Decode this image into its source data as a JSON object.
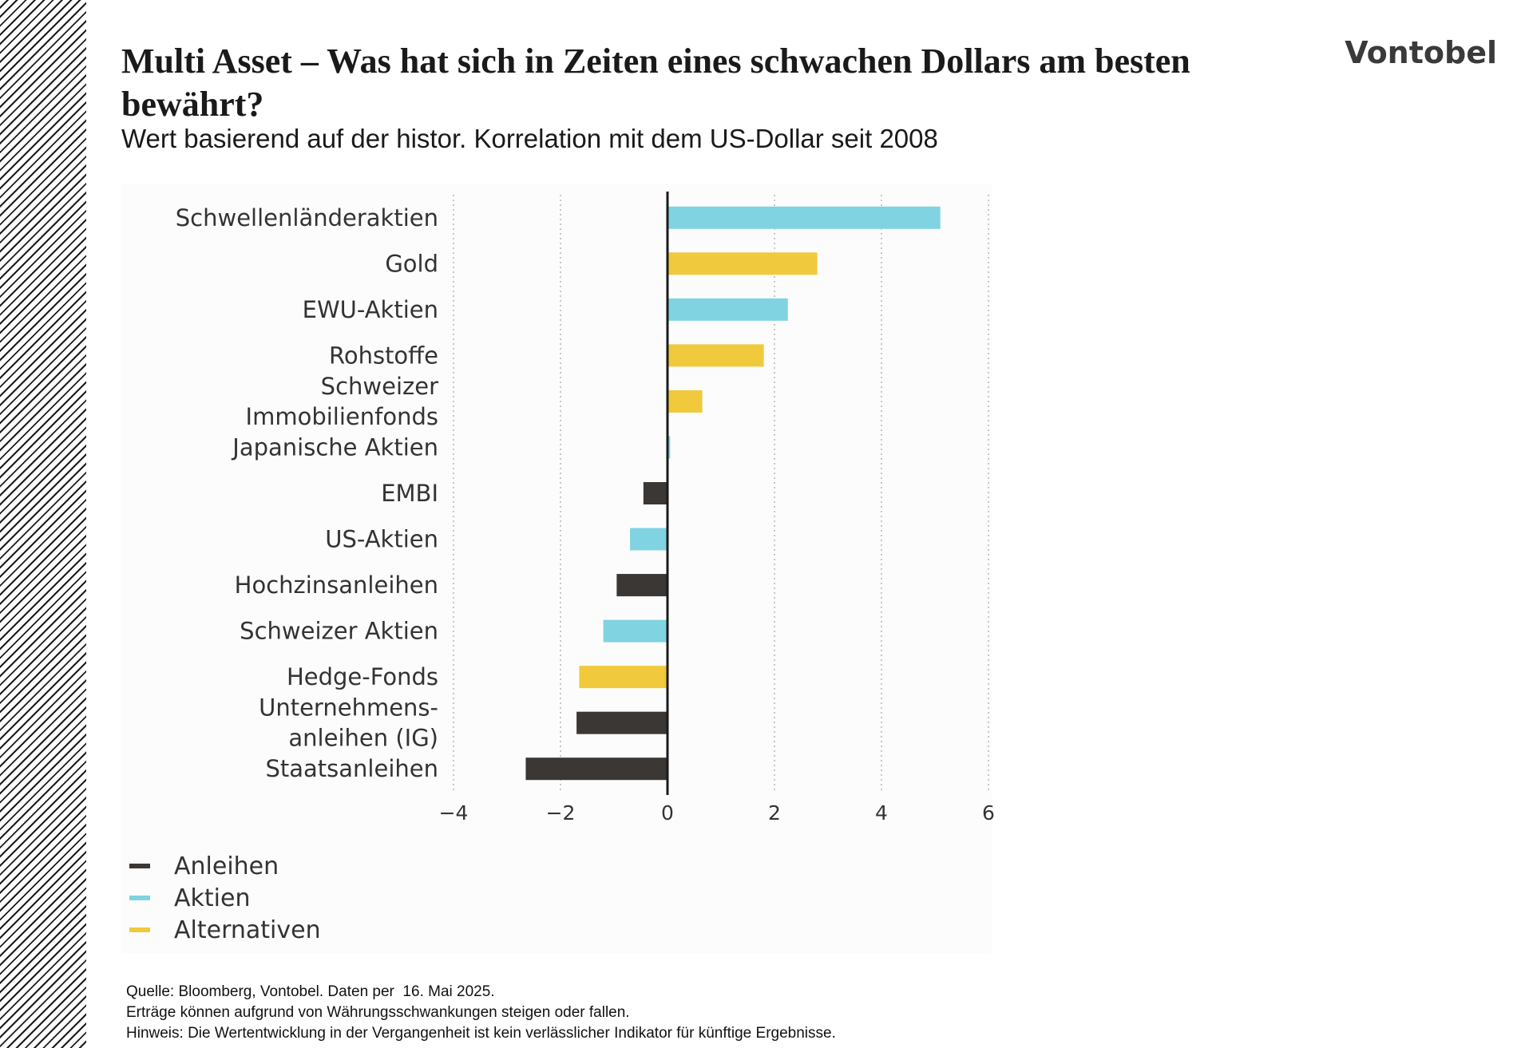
{
  "header": {
    "title": "Multi Asset – Was hat sich in Zeiten eines schwachen Dollars am besten bewährt?",
    "subtitle": "Wert basierend auf der histor. Korrelation mit dem US-Dollar seit 2008",
    "logo_text": "Vontobel"
  },
  "colors": {
    "Anleihen": "#3a3735",
    "Aktien": "#80d3e0",
    "Alternativen": "#f0c93c",
    "axis": "#1a1a1a",
    "grid": "#b5b5b5"
  },
  "chart_data": {
    "type": "bar",
    "orientation": "horizontal",
    "title": "",
    "xlabel": "",
    "ylabel": "",
    "xlim": [
      -4,
      6
    ],
    "xticks": [
      -4,
      -2,
      0,
      2,
      4,
      6
    ],
    "xtick_labels": [
      "−4",
      "−2",
      "0",
      "2",
      "4",
      "6"
    ],
    "grid": "vertical dotted",
    "legend_position": "bottom-left",
    "bars": [
      {
        "label": [
          "Schwellenländeraktien"
        ],
        "value": 5.1,
        "group": "Aktien"
      },
      {
        "label": [
          "Gold"
        ],
        "value": 2.8,
        "group": "Alternativen"
      },
      {
        "label": [
          "EWU-Aktien"
        ],
        "value": 2.25,
        "group": "Aktien"
      },
      {
        "label": [
          "Rohstoffe"
        ],
        "value": 1.8,
        "group": "Alternativen"
      },
      {
        "label": [
          "Schweizer",
          "Immobilienfonds"
        ],
        "value": 0.65,
        "group": "Alternativen"
      },
      {
        "label": [
          "Japanische Aktien"
        ],
        "value": 0.05,
        "group": "Aktien"
      },
      {
        "label": [
          "EMBI"
        ],
        "value": -0.45,
        "group": "Anleihen"
      },
      {
        "label": [
          "US-Aktien"
        ],
        "value": -0.7,
        "group": "Aktien"
      },
      {
        "label": [
          "Hochzinsanleihen"
        ],
        "value": -0.95,
        "group": "Anleihen"
      },
      {
        "label": [
          "Schweizer Aktien"
        ],
        "value": -1.2,
        "group": "Aktien"
      },
      {
        "label": [
          "Hedge-Fonds"
        ],
        "value": -1.65,
        "group": "Alternativen"
      },
      {
        "label": [
          "Unternehmens-",
          "anleihen (IG)"
        ],
        "value": -1.7,
        "group": "Anleihen"
      },
      {
        "label": [
          "Staatsanleihen"
        ],
        "value": -2.65,
        "group": "Anleihen"
      }
    ],
    "legend": [
      "Anleihen",
      "Aktien",
      "Alternativen"
    ]
  },
  "footer": {
    "source": "Quelle: Bloomberg, Vontobel. Daten per  16. Mai 2025.",
    "note1": "Erträge können aufgrund von Währungsschwankungen steigen oder fallen.",
    "note2": "Hinweis: Die Wertentwicklung in der Vergangenheit ist kein verlässlicher Indikator für künftige Ergebnisse."
  }
}
